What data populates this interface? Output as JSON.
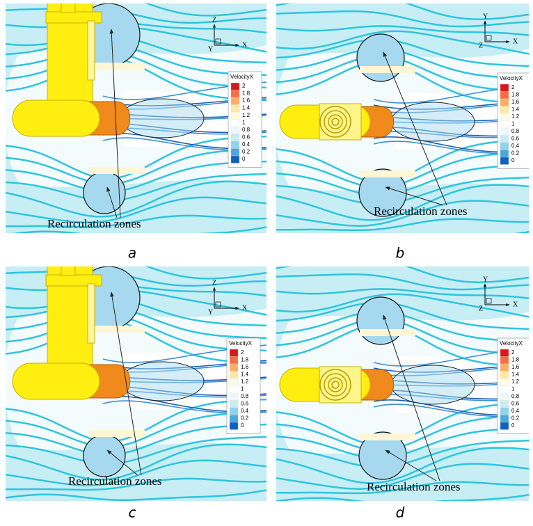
{
  "colormap": [
    "#d7191c",
    "#f46d43",
    "#fdae61",
    "#fee8a8",
    "#fffbe0",
    "#ffffff",
    "#eef8fb",
    "#c8ecf4",
    "#8fd3ec",
    "#4aa8dc",
    "#1060c0"
  ],
  "panels": [
    {
      "label": "a",
      "annotation": "Recirculation zones",
      "axes": {
        "up": "Z",
        "right": "X",
        "out": "Y"
      },
      "legend": {
        "title": "VelocityX",
        "ticks": [
          2,
          1.8,
          1.6,
          1.4,
          1.2,
          1,
          0.8,
          0.6,
          0.4,
          0.2,
          0
        ]
      }
    },
    {
      "label": "b",
      "annotation": "Recirculation zones",
      "axes": {
        "up": "Y",
        "right": "X",
        "out": "Z"
      },
      "legend": {
        "title": "VelocityX",
        "ticks": [
          2,
          1.8,
          1.6,
          1.4,
          1.2,
          1,
          0.8,
          0.6,
          0.4,
          0.2,
          0
        ]
      }
    },
    {
      "label": "c",
      "annotation": "Recirculation zones",
      "axes": {
        "up": "Z",
        "right": "X",
        "out": "Y"
      },
      "legend": {
        "title": "VelocityX",
        "ticks": [
          2,
          1.8,
          1.6,
          1.4,
          1.2,
          1,
          0.8,
          0.6,
          0.4,
          0.2,
          0
        ]
      }
    },
    {
      "label": "d",
      "annotation": "Recirculation zones",
      "axes": {
        "up": "Y",
        "right": "X",
        "out": "Z"
      },
      "legend": {
        "title": "VelocityX",
        "ticks": [
          2,
          1.8,
          1.6,
          1.4,
          1.2,
          1,
          0.8,
          0.6,
          0.4,
          0.2,
          0
        ]
      }
    }
  ]
}
